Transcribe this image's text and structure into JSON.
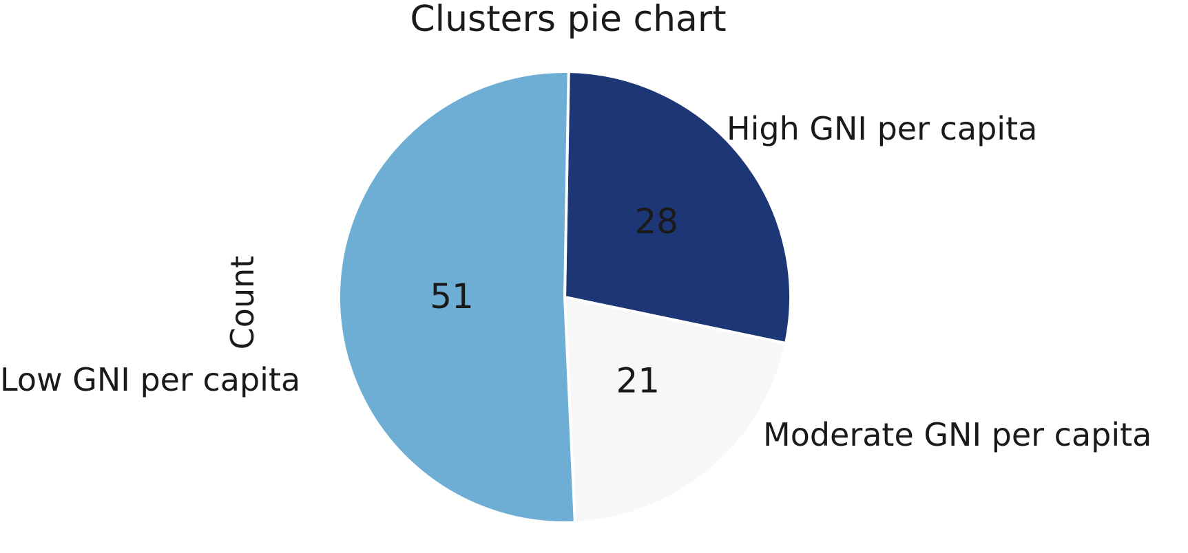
{
  "chart_data": {
    "type": "pie",
    "title": "Clusters pie chart",
    "ylabel": "Count",
    "categories": [
      "High GNI per capita",
      "Moderate GNI per capita",
      "Low GNI per capita"
    ],
    "values": [
      28,
      21,
      51
    ],
    "colors": [
      "#1d3776",
      "#f7f7f7",
      "#6eaed5"
    ],
    "start_angle_deg": -89,
    "direction": "clockwise",
    "legend": "none",
    "data_labels": [
      "28",
      "21",
      "51"
    ]
  }
}
